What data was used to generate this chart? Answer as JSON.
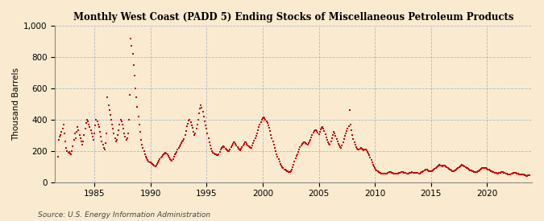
{
  "title": "Monthly West Coast (PADD 5) Ending Stocks of Miscellaneous Petroleum Products",
  "ylabel": "Thousand Barrels",
  "source": "Source: U.S. Energy Information Administration",
  "background_color": "#faebd0",
  "marker_color": "#cc0000",
  "ylim": [
    0,
    1000
  ],
  "yticks": [
    0,
    200,
    400,
    600,
    800,
    1000
  ],
  "xticks": [
    1985,
    1990,
    1995,
    2000,
    2005,
    2010,
    2015,
    2020
  ],
  "xlim": [
    1981.5,
    2024.0
  ],
  "data": [
    [
      1981.75,
      160
    ],
    [
      1981.83,
      270
    ],
    [
      1981.92,
      290
    ],
    [
      1982.0,
      300
    ],
    [
      1982.08,
      320
    ],
    [
      1982.17,
      340
    ],
    [
      1982.25,
      370
    ],
    [
      1982.33,
      310
    ],
    [
      1982.42,
      260
    ],
    [
      1982.5,
      220
    ],
    [
      1982.58,
      200
    ],
    [
      1982.67,
      190
    ],
    [
      1982.75,
      195
    ],
    [
      1982.83,
      185
    ],
    [
      1982.92,
      180
    ],
    [
      1983.0,
      200
    ],
    [
      1983.08,
      230
    ],
    [
      1983.17,
      270
    ],
    [
      1983.25,
      310
    ],
    [
      1983.33,
      280
    ],
    [
      1983.42,
      320
    ],
    [
      1983.5,
      350
    ],
    [
      1983.58,
      330
    ],
    [
      1983.67,
      300
    ],
    [
      1983.75,
      280
    ],
    [
      1983.83,
      260
    ],
    [
      1983.92,
      240
    ],
    [
      1984.0,
      260
    ],
    [
      1984.08,
      300
    ],
    [
      1984.17,
      340
    ],
    [
      1984.25,
      380
    ],
    [
      1984.33,
      400
    ],
    [
      1984.42,
      390
    ],
    [
      1984.5,
      370
    ],
    [
      1984.58,
      350
    ],
    [
      1984.67,
      330
    ],
    [
      1984.75,
      310
    ],
    [
      1984.83,
      290
    ],
    [
      1984.92,
      270
    ],
    [
      1985.0,
      310
    ],
    [
      1985.08,
      360
    ],
    [
      1985.17,
      400
    ],
    [
      1985.25,
      390
    ],
    [
      1985.33,
      370
    ],
    [
      1985.42,
      350
    ],
    [
      1985.5,
      320
    ],
    [
      1985.58,
      290
    ],
    [
      1985.67,
      260
    ],
    [
      1985.75,
      240
    ],
    [
      1985.83,
      220
    ],
    [
      1985.92,
      210
    ],
    [
      1986.0,
      250
    ],
    [
      1986.08,
      310
    ],
    [
      1986.17,
      540
    ],
    [
      1986.25,
      490
    ],
    [
      1986.33,
      460
    ],
    [
      1986.42,
      430
    ],
    [
      1986.5,
      400
    ],
    [
      1986.58,
      370
    ],
    [
      1986.67,
      340
    ],
    [
      1986.75,
      310
    ],
    [
      1986.83,
      280
    ],
    [
      1986.92,
      260
    ],
    [
      1987.0,
      270
    ],
    [
      1987.08,
      300
    ],
    [
      1987.17,
      330
    ],
    [
      1987.25,
      370
    ],
    [
      1987.33,
      400
    ],
    [
      1987.42,
      390
    ],
    [
      1987.5,
      370
    ],
    [
      1987.58,
      340
    ],
    [
      1987.67,
      310
    ],
    [
      1987.75,
      290
    ],
    [
      1987.83,
      270
    ],
    [
      1987.92,
      280
    ],
    [
      1988.0,
      310
    ],
    [
      1988.08,
      400
    ],
    [
      1988.17,
      560
    ],
    [
      1988.25,
      920
    ],
    [
      1988.33,
      870
    ],
    [
      1988.42,
      820
    ],
    [
      1988.5,
      750
    ],
    [
      1988.58,
      680
    ],
    [
      1988.67,
      600
    ],
    [
      1988.75,
      540
    ],
    [
      1988.83,
      480
    ],
    [
      1988.92,
      420
    ],
    [
      1989.0,
      370
    ],
    [
      1989.08,
      320
    ],
    [
      1989.17,
      270
    ],
    [
      1989.25,
      240
    ],
    [
      1989.33,
      220
    ],
    [
      1989.42,
      200
    ],
    [
      1989.5,
      180
    ],
    [
      1989.58,
      160
    ],
    [
      1989.67,
      150
    ],
    [
      1989.75,
      140
    ],
    [
      1989.83,
      130
    ],
    [
      1989.92,
      125
    ],
    [
      1990.0,
      125
    ],
    [
      1990.08,
      120
    ],
    [
      1990.17,
      115
    ],
    [
      1990.25,
      110
    ],
    [
      1990.33,
      105
    ],
    [
      1990.42,
      100
    ],
    [
      1990.5,
      105
    ],
    [
      1990.58,
      115
    ],
    [
      1990.67,
      125
    ],
    [
      1990.75,
      135
    ],
    [
      1990.83,
      145
    ],
    [
      1990.92,
      155
    ],
    [
      1991.0,
      160
    ],
    [
      1991.08,
      170
    ],
    [
      1991.17,
      180
    ],
    [
      1991.25,
      185
    ],
    [
      1991.33,
      190
    ],
    [
      1991.42,
      185
    ],
    [
      1991.5,
      175
    ],
    [
      1991.58,
      165
    ],
    [
      1991.67,
      155
    ],
    [
      1991.75,
      145
    ],
    [
      1991.83,
      140
    ],
    [
      1991.92,
      135
    ],
    [
      1992.0,
      145
    ],
    [
      1992.08,
      160
    ],
    [
      1992.17,
      175
    ],
    [
      1992.25,
      185
    ],
    [
      1992.33,
      195
    ],
    [
      1992.42,
      210
    ],
    [
      1992.5,
      220
    ],
    [
      1992.58,
      230
    ],
    [
      1992.67,
      240
    ],
    [
      1992.75,
      250
    ],
    [
      1992.83,
      260
    ],
    [
      1992.92,
      265
    ],
    [
      1993.0,
      275
    ],
    [
      1993.08,
      300
    ],
    [
      1993.17,
      325
    ],
    [
      1993.25,
      355
    ],
    [
      1993.33,
      375
    ],
    [
      1993.42,
      395
    ],
    [
      1993.5,
      400
    ],
    [
      1993.58,
      385
    ],
    [
      1993.67,
      365
    ],
    [
      1993.75,
      345
    ],
    [
      1993.83,
      320
    ],
    [
      1993.92,
      300
    ],
    [
      1994.0,
      310
    ],
    [
      1994.08,
      340
    ],
    [
      1994.17,
      370
    ],
    [
      1994.25,
      400
    ],
    [
      1994.33,
      440
    ],
    [
      1994.42,
      470
    ],
    [
      1994.5,
      490
    ],
    [
      1994.58,
      475
    ],
    [
      1994.67,
      450
    ],
    [
      1994.75,
      420
    ],
    [
      1994.83,
      390
    ],
    [
      1994.92,
      360
    ],
    [
      1995.0,
      340
    ],
    [
      1995.08,
      310
    ],
    [
      1995.17,
      280
    ],
    [
      1995.25,
      255
    ],
    [
      1995.33,
      235
    ],
    [
      1995.42,
      215
    ],
    [
      1995.5,
      200
    ],
    [
      1995.58,
      190
    ],
    [
      1995.67,
      185
    ],
    [
      1995.75,
      180
    ],
    [
      1995.83,
      175
    ],
    [
      1995.92,
      170
    ],
    [
      1996.0,
      170
    ],
    [
      1996.08,
      180
    ],
    [
      1996.17,
      195
    ],
    [
      1996.25,
      210
    ],
    [
      1996.33,
      220
    ],
    [
      1996.42,
      225
    ],
    [
      1996.5,
      230
    ],
    [
      1996.58,
      225
    ],
    [
      1996.67,
      215
    ],
    [
      1996.75,
      210
    ],
    [
      1996.83,
      205
    ],
    [
      1996.92,
      200
    ],
    [
      1997.0,
      200
    ],
    [
      1997.08,
      210
    ],
    [
      1997.17,
      225
    ],
    [
      1997.25,
      235
    ],
    [
      1997.33,
      245
    ],
    [
      1997.42,
      255
    ],
    [
      1997.5,
      255
    ],
    [
      1997.58,
      245
    ],
    [
      1997.67,
      235
    ],
    [
      1997.75,
      225
    ],
    [
      1997.83,
      215
    ],
    [
      1997.92,
      210
    ],
    [
      1998.0,
      205
    ],
    [
      1998.08,
      215
    ],
    [
      1998.17,
      225
    ],
    [
      1998.25,
      235
    ],
    [
      1998.33,
      245
    ],
    [
      1998.42,
      255
    ],
    [
      1998.5,
      255
    ],
    [
      1998.58,
      245
    ],
    [
      1998.67,
      235
    ],
    [
      1998.75,
      230
    ],
    [
      1998.83,
      225
    ],
    [
      1998.92,
      220
    ],
    [
      1999.0,
      220
    ],
    [
      1999.08,
      235
    ],
    [
      1999.17,
      250
    ],
    [
      1999.25,
      265
    ],
    [
      1999.33,
      280
    ],
    [
      1999.42,
      295
    ],
    [
      1999.5,
      310
    ],
    [
      1999.58,
      330
    ],
    [
      1999.67,
      350
    ],
    [
      1999.75,
      370
    ],
    [
      1999.83,
      385
    ],
    [
      1999.92,
      400
    ],
    [
      2000.0,
      410
    ],
    [
      2000.08,
      415
    ],
    [
      2000.17,
      410
    ],
    [
      2000.25,
      400
    ],
    [
      2000.33,
      390
    ],
    [
      2000.42,
      380
    ],
    [
      2000.5,
      365
    ],
    [
      2000.58,
      345
    ],
    [
      2000.67,
      325
    ],
    [
      2000.75,
      300
    ],
    [
      2000.83,
      280
    ],
    [
      2000.92,
      260
    ],
    [
      2001.0,
      240
    ],
    [
      2001.08,
      220
    ],
    [
      2001.17,
      200
    ],
    [
      2001.25,
      180
    ],
    [
      2001.33,
      160
    ],
    [
      2001.42,
      145
    ],
    [
      2001.5,
      130
    ],
    [
      2001.58,
      115
    ],
    [
      2001.67,
      105
    ],
    [
      2001.75,
      95
    ],
    [
      2001.83,
      88
    ],
    [
      2001.92,
      82
    ],
    [
      2002.0,
      78
    ],
    [
      2002.08,
      74
    ],
    [
      2002.17,
      70
    ],
    [
      2002.25,
      68
    ],
    [
      2002.33,
      65
    ],
    [
      2002.42,
      65
    ],
    [
      2002.5,
      70
    ],
    [
      2002.58,
      80
    ],
    [
      2002.67,
      95
    ],
    [
      2002.75,
      110
    ],
    [
      2002.83,
      130
    ],
    [
      2002.92,
      150
    ],
    [
      2003.0,
      165
    ],
    [
      2003.08,
      180
    ],
    [
      2003.17,
      195
    ],
    [
      2003.25,
      210
    ],
    [
      2003.33,
      225
    ],
    [
      2003.42,
      235
    ],
    [
      2003.5,
      245
    ],
    [
      2003.58,
      250
    ],
    [
      2003.67,
      255
    ],
    [
      2003.75,
      255
    ],
    [
      2003.83,
      250
    ],
    [
      2003.92,
      245
    ],
    [
      2004.0,
      240
    ],
    [
      2004.08,
      250
    ],
    [
      2004.17,
      260
    ],
    [
      2004.25,
      270
    ],
    [
      2004.33,
      285
    ],
    [
      2004.42,
      300
    ],
    [
      2004.5,
      315
    ],
    [
      2004.58,
      325
    ],
    [
      2004.67,
      330
    ],
    [
      2004.75,
      330
    ],
    [
      2004.83,
      325
    ],
    [
      2004.92,
      315
    ],
    [
      2005.0,
      305
    ],
    [
      2005.08,
      320
    ],
    [
      2005.17,
      335
    ],
    [
      2005.25,
      345
    ],
    [
      2005.33,
      350
    ],
    [
      2005.42,
      340
    ],
    [
      2005.5,
      325
    ],
    [
      2005.58,
      305
    ],
    [
      2005.67,
      285
    ],
    [
      2005.75,
      270
    ],
    [
      2005.83,
      255
    ],
    [
      2005.92,
      245
    ],
    [
      2006.0,
      240
    ],
    [
      2006.08,
      260
    ],
    [
      2006.17,
      280
    ],
    [
      2006.25,
      300
    ],
    [
      2006.33,
      320
    ],
    [
      2006.42,
      310
    ],
    [
      2006.5,
      295
    ],
    [
      2006.58,
      275
    ],
    [
      2006.67,
      260
    ],
    [
      2006.75,
      245
    ],
    [
      2006.83,
      235
    ],
    [
      2006.92,
      225
    ],
    [
      2007.0,
      220
    ],
    [
      2007.08,
      235
    ],
    [
      2007.17,
      255
    ],
    [
      2007.25,
      275
    ],
    [
      2007.33,
      295
    ],
    [
      2007.42,
      310
    ],
    [
      2007.5,
      325
    ],
    [
      2007.58,
      340
    ],
    [
      2007.67,
      355
    ],
    [
      2007.75,
      460
    ],
    [
      2007.83,
      370
    ],
    [
      2007.92,
      330
    ],
    [
      2008.0,
      300
    ],
    [
      2008.08,
      275
    ],
    [
      2008.17,
      255
    ],
    [
      2008.25,
      240
    ],
    [
      2008.33,
      225
    ],
    [
      2008.42,
      215
    ],
    [
      2008.5,
      210
    ],
    [
      2008.58,
      210
    ],
    [
      2008.67,
      215
    ],
    [
      2008.75,
      220
    ],
    [
      2008.83,
      215
    ],
    [
      2008.92,
      210
    ],
    [
      2009.0,
      205
    ],
    [
      2009.08,
      210
    ],
    [
      2009.17,
      210
    ],
    [
      2009.25,
      205
    ],
    [
      2009.33,
      195
    ],
    [
      2009.42,
      185
    ],
    [
      2009.5,
      170
    ],
    [
      2009.58,
      155
    ],
    [
      2009.67,
      140
    ],
    [
      2009.75,
      125
    ],
    [
      2009.83,
      110
    ],
    [
      2009.92,
      100
    ],
    [
      2010.0,
      90
    ],
    [
      2010.08,
      80
    ],
    [
      2010.17,
      73
    ],
    [
      2010.25,
      68
    ],
    [
      2010.33,
      63
    ],
    [
      2010.42,
      60
    ],
    [
      2010.5,
      58
    ],
    [
      2010.58,
      56
    ],
    [
      2010.67,
      54
    ],
    [
      2010.75,
      54
    ],
    [
      2010.83,
      53
    ],
    [
      2010.92,
      52
    ],
    [
      2011.0,
      52
    ],
    [
      2011.08,
      55
    ],
    [
      2011.17,
      58
    ],
    [
      2011.25,
      62
    ],
    [
      2011.33,
      64
    ],
    [
      2011.42,
      62
    ],
    [
      2011.5,
      60
    ],
    [
      2011.58,
      58
    ],
    [
      2011.67,
      56
    ],
    [
      2011.75,
      55
    ],
    [
      2011.83,
      54
    ],
    [
      2011.92,
      53
    ],
    [
      2012.0,
      52
    ],
    [
      2012.08,
      55
    ],
    [
      2012.17,
      58
    ],
    [
      2012.25,
      60
    ],
    [
      2012.33,
      62
    ],
    [
      2012.42,
      63
    ],
    [
      2012.5,
      62
    ],
    [
      2012.58,
      60
    ],
    [
      2012.67,
      58
    ],
    [
      2012.75,
      57
    ],
    [
      2012.83,
      56
    ],
    [
      2012.92,
      55
    ],
    [
      2013.0,
      55
    ],
    [
      2013.08,
      57
    ],
    [
      2013.17,
      59
    ],
    [
      2013.25,
      61
    ],
    [
      2013.33,
      62
    ],
    [
      2013.42,
      61
    ],
    [
      2013.5,
      60
    ],
    [
      2013.58,
      59
    ],
    [
      2013.67,
      58
    ],
    [
      2013.75,
      57
    ],
    [
      2013.83,
      57
    ],
    [
      2013.92,
      56
    ],
    [
      2014.0,
      56
    ],
    [
      2014.08,
      58
    ],
    [
      2014.17,
      62
    ],
    [
      2014.25,
      66
    ],
    [
      2014.33,
      70
    ],
    [
      2014.42,
      74
    ],
    [
      2014.5,
      78
    ],
    [
      2014.58,
      80
    ],
    [
      2014.67,
      78
    ],
    [
      2014.75,
      75
    ],
    [
      2014.83,
      72
    ],
    [
      2014.92,
      70
    ],
    [
      2015.0,
      68
    ],
    [
      2015.08,
      72
    ],
    [
      2015.17,
      76
    ],
    [
      2015.25,
      80
    ],
    [
      2015.33,
      85
    ],
    [
      2015.42,
      90
    ],
    [
      2015.5,
      96
    ],
    [
      2015.58,
      102
    ],
    [
      2015.67,
      108
    ],
    [
      2015.75,
      112
    ],
    [
      2015.83,
      108
    ],
    [
      2015.92,
      104
    ],
    [
      2016.0,
      100
    ],
    [
      2016.08,
      104
    ],
    [
      2016.17,
      108
    ],
    [
      2016.25,
      105
    ],
    [
      2016.33,
      100
    ],
    [
      2016.42,
      95
    ],
    [
      2016.5,
      90
    ],
    [
      2016.58,
      86
    ],
    [
      2016.67,
      82
    ],
    [
      2016.75,
      78
    ],
    [
      2016.83,
      75
    ],
    [
      2016.92,
      72
    ],
    [
      2017.0,
      70
    ],
    [
      2017.08,
      73
    ],
    [
      2017.17,
      76
    ],
    [
      2017.25,
      80
    ],
    [
      2017.33,
      84
    ],
    [
      2017.42,
      88
    ],
    [
      2017.5,
      95
    ],
    [
      2017.58,
      102
    ],
    [
      2017.67,
      108
    ],
    [
      2017.75,
      112
    ],
    [
      2017.83,
      108
    ],
    [
      2017.92,
      104
    ],
    [
      2018.0,
      100
    ],
    [
      2018.08,
      96
    ],
    [
      2018.17,
      92
    ],
    [
      2018.25,
      88
    ],
    [
      2018.33,
      84
    ],
    [
      2018.42,
      80
    ],
    [
      2018.5,
      76
    ],
    [
      2018.58,
      73
    ],
    [
      2018.67,
      70
    ],
    [
      2018.75,
      68
    ],
    [
      2018.83,
      66
    ],
    [
      2018.92,
      64
    ],
    [
      2019.0,
      63
    ],
    [
      2019.08,
      65
    ],
    [
      2019.17,
      68
    ],
    [
      2019.25,
      72
    ],
    [
      2019.33,
      76
    ],
    [
      2019.42,
      80
    ],
    [
      2019.5,
      84
    ],
    [
      2019.58,
      88
    ],
    [
      2019.67,
      90
    ],
    [
      2019.75,
      92
    ],
    [
      2019.83,
      90
    ],
    [
      2019.92,
      88
    ],
    [
      2020.0,
      86
    ],
    [
      2020.08,
      82
    ],
    [
      2020.17,
      78
    ],
    [
      2020.25,
      74
    ],
    [
      2020.33,
      70
    ],
    [
      2020.42,
      67
    ],
    [
      2020.5,
      64
    ],
    [
      2020.58,
      62
    ],
    [
      2020.67,
      60
    ],
    [
      2020.75,
      58
    ],
    [
      2020.83,
      57
    ],
    [
      2020.92,
      56
    ],
    [
      2021.0,
      55
    ],
    [
      2021.08,
      58
    ],
    [
      2021.17,
      61
    ],
    [
      2021.25,
      64
    ],
    [
      2021.33,
      66
    ],
    [
      2021.42,
      64
    ],
    [
      2021.5,
      61
    ],
    [
      2021.58,
      58
    ],
    [
      2021.67,
      55
    ],
    [
      2021.75,
      53
    ],
    [
      2021.83,
      51
    ],
    [
      2021.92,
      50
    ],
    [
      2022.0,
      49
    ],
    [
      2022.08,
      51
    ],
    [
      2022.17,
      53
    ],
    [
      2022.25,
      55
    ],
    [
      2022.33,
      57
    ],
    [
      2022.42,
      58
    ],
    [
      2022.5,
      59
    ],
    [
      2022.58,
      57
    ],
    [
      2022.67,
      55
    ],
    [
      2022.75,
      53
    ],
    [
      2022.83,
      51
    ],
    [
      2022.92,
      50
    ],
    [
      2023.0,
      49
    ],
    [
      2023.08,
      50
    ],
    [
      2023.17,
      49
    ],
    [
      2023.25,
      47
    ],
    [
      2023.33,
      45
    ],
    [
      2023.42,
      43
    ],
    [
      2023.5,
      41
    ],
    [
      2023.58,
      40
    ],
    [
      2023.67,
      42
    ],
    [
      2023.75,
      43
    ]
  ]
}
